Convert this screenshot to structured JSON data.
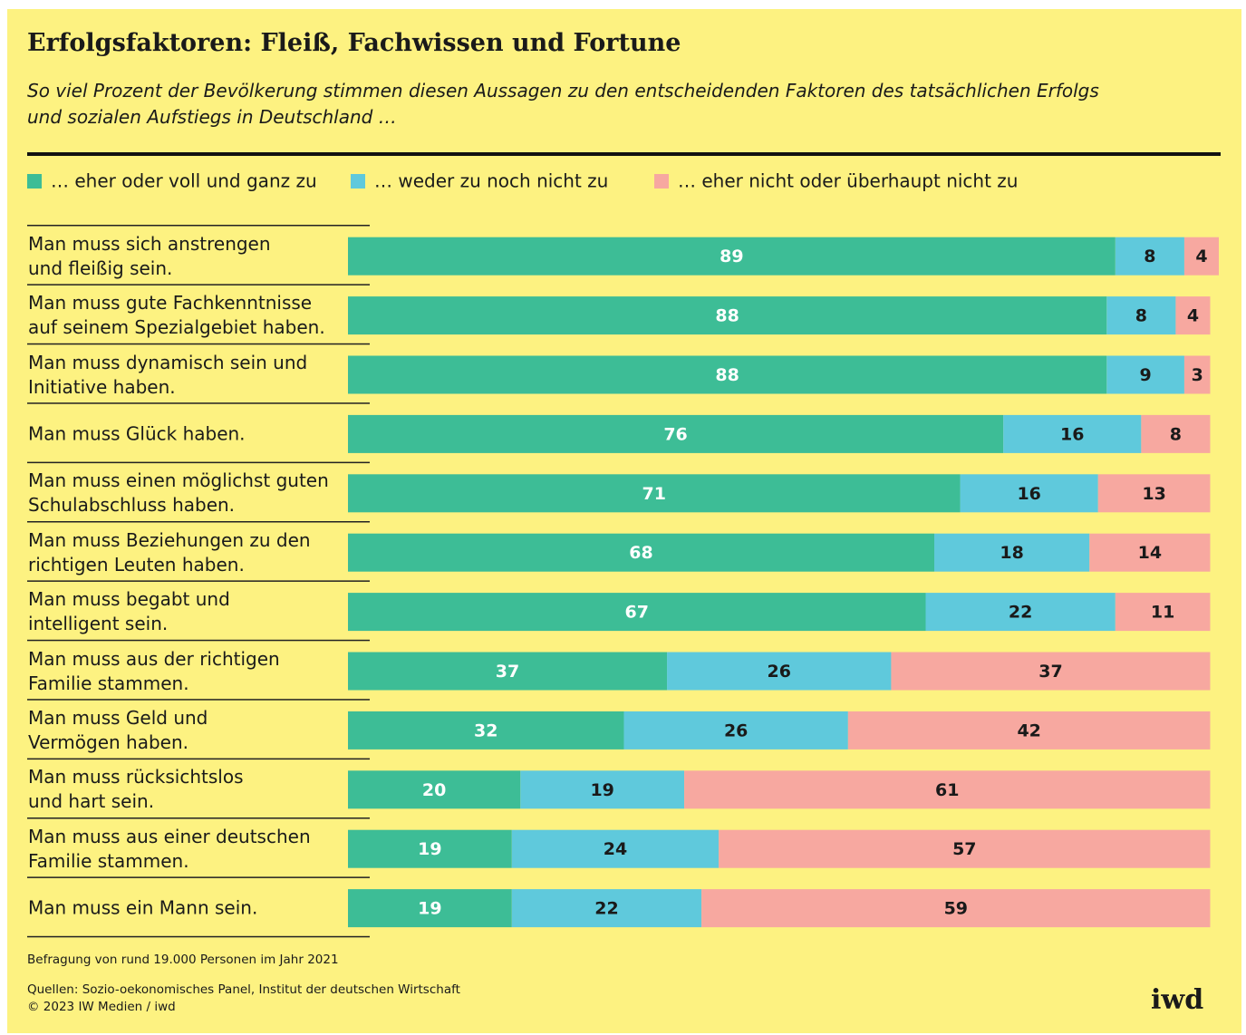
{
  "chart_data": {
    "type": "stacked_bar_horizontal",
    "title": "Erfolgsfaktoren: Fleiß, Fachwissen und Fortune",
    "subtitle": "So viel Prozent der Bevölkerung stimmen diesen Aussagen zu den entscheidenden Faktoren des tatsächlichen Erfolgs\nund sozialen Aufstiegs in Deutschland …",
    "categories": [
      "Man muss sich anstrengen\nund fleißig sein.",
      "Man muss gute Fachkenntnisse\nauf seinem Spezialgebiet haben.",
      "Man muss dynamisch sein und\nInitiative haben.",
      "Man muss Glück haben.",
      "Man muss einen möglichst guten\nSchulabschluss haben.",
      "Man muss Beziehungen zu den\nrichtigen Leuten haben.",
      "Man muss begabt und\nintelligent sein.",
      "Man muss aus der richtigen\nFamilie stammen.",
      "Man muss Geld und\nVermögen haben.",
      "Man muss rücksichtslos\nund hart sein.",
      "Man muss aus einer deutschen\nFamilie stammen.",
      "Man muss ein Mann sein."
    ],
    "series": [
      {
        "name": "… eher oder voll und ganz zu",
        "color": "#3dbd96",
        "label_color": "#ffffff",
        "values": [
          89,
          88,
          88,
          76,
          71,
          68,
          67,
          37,
          32,
          20,
          19,
          19
        ]
      },
      {
        "name": "… weder zu noch nicht zu",
        "color": "#5fc9dc",
        "label_color": "#1a1a1a",
        "values": [
          8,
          8,
          9,
          16,
          16,
          18,
          22,
          26,
          26,
          19,
          24,
          22
        ]
      },
      {
        "name": "… eher nicht oder überhaupt nicht zu",
        "color": "#f7a8a0",
        "label_color": "#1a1a1a",
        "values": [
          4,
          4,
          3,
          8,
          13,
          14,
          11,
          37,
          42,
          61,
          57,
          59
        ]
      }
    ],
    "note": "Befragung von rund 19.000 Personen im Jahr 2021",
    "source": "Quellen: Sozio-oekonomisches Panel, Institut der deutschen Wirtschaft",
    "copyright": "© 2023 IW Medien / iwd",
    "logo": "iwd"
  }
}
